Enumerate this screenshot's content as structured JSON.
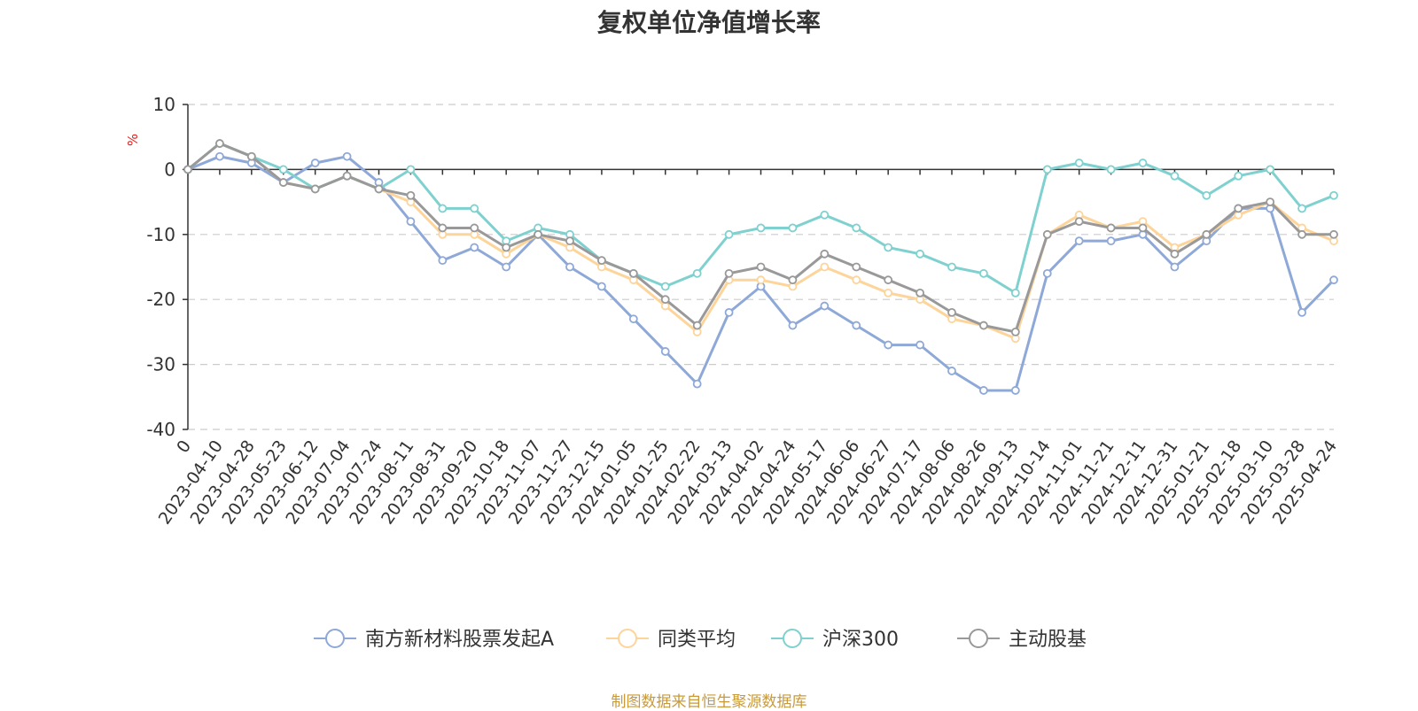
{
  "title": "复权单位净值增长率",
  "footer": "制图数据来自恒生聚源数据库",
  "colors": {
    "title": "#333333",
    "footer": "#c89a3a",
    "axis": "#333333",
    "grid": "#cccccc",
    "unit": "#e02020"
  },
  "chart_data": {
    "type": "line",
    "title": "复权单位净值增长率",
    "ylabel": "%",
    "xlabel": "",
    "ylim": [
      -40,
      10
    ],
    "yticks": [
      10,
      0,
      -10,
      -20,
      -30,
      -40
    ],
    "grid": true,
    "legend_position": "bottom",
    "x": [
      "0",
      "2023-04-10",
      "2023-04-28",
      "2023-05-23",
      "2023-06-12",
      "2023-07-04",
      "2023-07-24",
      "2023-08-11",
      "2023-08-31",
      "2023-09-20",
      "2023-10-18",
      "2023-11-07",
      "2023-11-27",
      "2023-12-15",
      "2024-01-05",
      "2024-01-25",
      "2024-02-22",
      "2024-03-13",
      "2024-04-02",
      "2024-04-24",
      "2024-05-17",
      "2024-06-06",
      "2024-06-27",
      "2024-07-17",
      "2024-08-06",
      "2024-08-26",
      "2024-09-13",
      "2024-10-14",
      "2024-11-01",
      "2024-11-21",
      "2024-12-11",
      "2024-12-31",
      "2025-01-21",
      "2025-02-18",
      "2025-03-10",
      "2025-03-28",
      "2025-04-24"
    ],
    "series": [
      {
        "name": "南方新材料股票发起A",
        "color": "#8ea8d8",
        "values": [
          0,
          2,
          1,
          -2,
          1,
          2,
          -2,
          -8,
          -14,
          -12,
          -15,
          -10,
          -15,
          -18,
          -23,
          -28,
          -33,
          -22,
          -18,
          -24,
          -21,
          -24,
          -27,
          -27,
          -31,
          -34,
          -34,
          -16,
          -11,
          -11,
          -10,
          -15,
          -11,
          -6,
          -6,
          -22,
          -17
        ]
      },
      {
        "name": "同类平均",
        "color": "#fdd49a",
        "values": [
          0,
          4,
          2,
          -2,
          -3,
          -1,
          -3,
          -5,
          -10,
          -10,
          -13,
          -10,
          -12,
          -15,
          -17,
          -21,
          -25,
          -17,
          -17,
          -18,
          -15,
          -17,
          -19,
          -20,
          -23,
          -24,
          -26,
          -10,
          -7,
          -9,
          -8,
          -12,
          -10,
          -7,
          -5,
          -9,
          -11
        ]
      },
      {
        "name": "沪深300",
        "color": "#7fd1cf",
        "values": [
          0,
          4,
          2,
          0,
          -3,
          -1,
          -3,
          0,
          -6,
          -6,
          -11,
          -9,
          -10,
          -14,
          -16,
          -18,
          -16,
          -10,
          -9,
          -9,
          -7,
          -9,
          -12,
          -13,
          -15,
          -16,
          -19,
          0,
          1,
          0,
          1,
          -1,
          -4,
          -1,
          0,
          -6,
          -4
        ]
      },
      {
        "name": "主动股基",
        "color": "#999999",
        "values": [
          0,
          4,
          2,
          -2,
          -3,
          -1,
          -3,
          -4,
          -9,
          -9,
          -12,
          -10,
          -11,
          -14,
          -16,
          -20,
          -24,
          -16,
          -15,
          -17,
          -13,
          -15,
          -17,
          -19,
          -22,
          -24,
          -25,
          -10,
          -8,
          -9,
          -9,
          -13,
          -10,
          -6,
          -5,
          -10,
          -10
        ]
      }
    ]
  }
}
